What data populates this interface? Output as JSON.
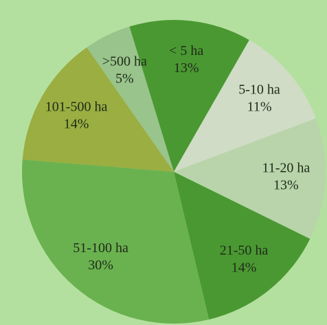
{
  "chart_data": {
    "type": "pie",
    "categories": [
      "< 5 ha",
      "5-10 ha",
      "11-20 ha",
      "21-50 ha",
      "51-100 ha",
      "101-500 ha",
      ">500 ha"
    ],
    "values": [
      13,
      11,
      13,
      14,
      30,
      14,
      5
    ],
    "value_labels": [
      "13%",
      "11%",
      "13%",
      "14%",
      "30%",
      "14%",
      "5%"
    ],
    "colors": [
      "#4a9832",
      "#d0dcc6",
      "#b9d4aa",
      "#4a9832",
      "#6ab24f",
      "#9aae41",
      "#99c48b"
    ]
  }
}
